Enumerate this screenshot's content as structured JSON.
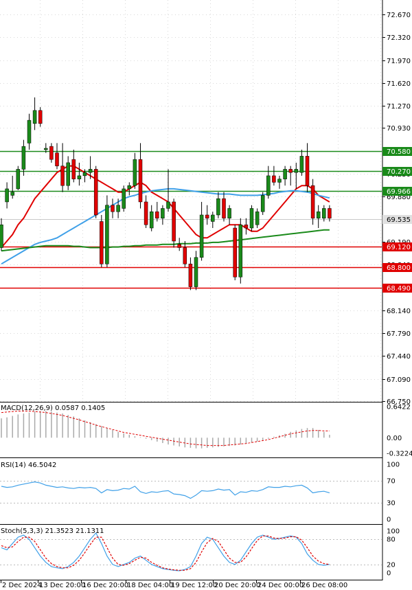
{
  "chart_data": [
    {
      "type": "candlestick",
      "panel": "price",
      "ylim": [
        66.75,
        72.87
      ],
      "y_ticks": [
        "72.670",
        "72.320",
        "71.970",
        "71.620",
        "71.270",
        "70.930",
        "70.580",
        "70.230",
        "69.880",
        "69.535",
        "69.190",
        "68.840",
        "68.490",
        "68.140",
        "67.790",
        "67.440",
        "67.090",
        "66.750"
      ],
      "current_price": {
        "value": 69.535,
        "label": "69.535",
        "color": "#e0e0e0"
      },
      "levels": [
        {
          "value": 70.58,
          "label": "70.580",
          "color": "#1a8a1a"
        },
        {
          "value": 70.27,
          "label": "70.270",
          "color": "#1a8a1a"
        },
        {
          "value": 69.966,
          "label": "69.966",
          "color": "#1a8a1a"
        },
        {
          "value": 69.12,
          "label": "69.120",
          "color": "#e00000"
        },
        {
          "value": 68.8,
          "label": "68.800",
          "color": "#e00000"
        },
        {
          "value": 68.49,
          "label": "68.490",
          "color": "#e00000"
        }
      ],
      "candles": [
        {
          "o": 69.1,
          "h": 69.55,
          "l": 69.05,
          "c": 69.45
        },
        {
          "o": 69.8,
          "h": 70.1,
          "l": 69.7,
          "c": 70.0
        },
        {
          "o": 69.9,
          "h": 70.2,
          "l": 69.85,
          "c": 69.95
        },
        {
          "o": 70.0,
          "h": 70.35,
          "l": 69.98,
          "c": 70.3
        },
        {
          "o": 70.3,
          "h": 70.75,
          "l": 70.2,
          "c": 70.65
        },
        {
          "o": 70.7,
          "h": 71.15,
          "l": 70.6,
          "c": 71.05
        },
        {
          "o": 71.0,
          "h": 71.4,
          "l": 70.9,
          "c": 71.2
        },
        {
          "o": 71.2,
          "h": 71.25,
          "l": 70.95,
          "c": 71.0
        },
        {
          "o": 70.6,
          "h": 70.7,
          "l": 70.55,
          "c": 70.62
        },
        {
          "o": 70.65,
          "h": 70.7,
          "l": 70.4,
          "c": 70.45
        },
        {
          "o": 70.55,
          "h": 70.7,
          "l": 70.3,
          "c": 70.35
        },
        {
          "o": 70.35,
          "h": 70.7,
          "l": 69.95,
          "c": 70.05
        },
        {
          "o": 70.05,
          "h": 70.5,
          "l": 69.98,
          "c": 70.4
        },
        {
          "o": 70.45,
          "h": 70.6,
          "l": 70.1,
          "c": 70.15
        },
        {
          "o": 70.15,
          "h": 70.4,
          "l": 70.05,
          "c": 70.2
        },
        {
          "o": 70.2,
          "h": 70.3,
          "l": 70.1,
          "c": 70.25
        },
        {
          "o": 70.25,
          "h": 70.5,
          "l": 70.15,
          "c": 70.3
        },
        {
          "o": 70.3,
          "h": 70.35,
          "l": 69.55,
          "c": 69.6
        },
        {
          "o": 69.5,
          "h": 69.6,
          "l": 68.8,
          "c": 68.85
        },
        {
          "o": 68.85,
          "h": 69.9,
          "l": 68.8,
          "c": 69.75
        },
        {
          "o": 69.75,
          "h": 69.85,
          "l": 69.55,
          "c": 69.65
        },
        {
          "o": 69.65,
          "h": 69.85,
          "l": 69.55,
          "c": 69.75
        },
        {
          "o": 69.7,
          "h": 70.05,
          "l": 69.65,
          "c": 70.0
        },
        {
          "o": 70.0,
          "h": 70.1,
          "l": 69.9,
          "c": 70.05
        },
        {
          "o": 70.05,
          "h": 70.55,
          "l": 70.0,
          "c": 70.45
        },
        {
          "o": 70.45,
          "h": 70.7,
          "l": 69.7,
          "c": 69.8
        },
        {
          "o": 69.8,
          "h": 69.9,
          "l": 69.4,
          "c": 69.45
        },
        {
          "o": 69.4,
          "h": 69.75,
          "l": 69.35,
          "c": 69.65
        },
        {
          "o": 69.65,
          "h": 69.8,
          "l": 69.5,
          "c": 69.55
        },
        {
          "o": 69.55,
          "h": 69.75,
          "l": 69.45,
          "c": 69.7
        },
        {
          "o": 69.7,
          "h": 70.3,
          "l": 69.65,
          "c": 69.8
        },
        {
          "o": 69.8,
          "h": 69.85,
          "l": 69.1,
          "c": 69.2
        },
        {
          "o": 69.15,
          "h": 69.25,
          "l": 69.05,
          "c": 69.1
        },
        {
          "o": 69.1,
          "h": 69.2,
          "l": 68.8,
          "c": 68.85
        },
        {
          "o": 68.85,
          "h": 68.95,
          "l": 68.45,
          "c": 68.5
        },
        {
          "o": 68.5,
          "h": 69.05,
          "l": 68.45,
          "c": 68.95
        },
        {
          "o": 68.95,
          "h": 69.8,
          "l": 68.9,
          "c": 69.6
        },
        {
          "o": 69.6,
          "h": 69.75,
          "l": 69.45,
          "c": 69.55
        },
        {
          "o": 69.5,
          "h": 69.65,
          "l": 69.4,
          "c": 69.6
        },
        {
          "o": 69.6,
          "h": 69.95,
          "l": 69.55,
          "c": 69.85
        },
        {
          "o": 69.85,
          "h": 69.95,
          "l": 69.5,
          "c": 69.55
        },
        {
          "o": 69.55,
          "h": 69.75,
          "l": 69.45,
          "c": 69.7
        },
        {
          "o": 69.4,
          "h": 69.45,
          "l": 68.6,
          "c": 68.65
        },
        {
          "o": 68.65,
          "h": 69.55,
          "l": 68.55,
          "c": 69.45
        },
        {
          "o": 69.45,
          "h": 69.55,
          "l": 69.3,
          "c": 69.4
        },
        {
          "o": 69.4,
          "h": 69.75,
          "l": 69.35,
          "c": 69.7
        },
        {
          "o": 69.45,
          "h": 69.7,
          "l": 69.4,
          "c": 69.65
        },
        {
          "o": 69.65,
          "h": 69.95,
          "l": 69.6,
          "c": 69.9
        },
        {
          "o": 69.9,
          "h": 70.35,
          "l": 69.85,
          "c": 70.2
        },
        {
          "o": 70.2,
          "h": 70.35,
          "l": 70.05,
          "c": 70.1
        },
        {
          "o": 70.1,
          "h": 70.2,
          "l": 70.0,
          "c": 70.15
        },
        {
          "o": 70.15,
          "h": 70.35,
          "l": 70.05,
          "c": 70.3
        },
        {
          "o": 70.3,
          "h": 70.35,
          "l": 70.05,
          "c": 70.25
        },
        {
          "o": 70.25,
          "h": 70.4,
          "l": 70.0,
          "c": 70.3
        },
        {
          "o": 70.25,
          "h": 70.6,
          "l": 70.2,
          "c": 70.5
        },
        {
          "o": 70.5,
          "h": 70.7,
          "l": 69.95,
          "c": 70.05
        },
        {
          "o": 70.05,
          "h": 70.15,
          "l": 69.45,
          "c": 69.55
        },
        {
          "o": 69.55,
          "h": 69.75,
          "l": 69.4,
          "c": 69.65
        },
        {
          "o": 69.55,
          "h": 69.75,
          "l": 69.5,
          "c": 69.7
        },
        {
          "o": 69.7,
          "h": 69.75,
          "l": 69.5,
          "c": 69.55
        }
      ],
      "series": [
        {
          "name": "",
          "color": "#e00000",
          "values": [
            69.1,
            69.2,
            69.3,
            69.45,
            69.55,
            69.7,
            69.85,
            69.95,
            70.05,
            70.15,
            70.25,
            70.3,
            70.35,
            70.35,
            70.3,
            70.25,
            70.2,
            70.15,
            70.1,
            70.05,
            70.0,
            69.95,
            69.95,
            70.0,
            70.05,
            70.1,
            70.05,
            69.95,
            69.9,
            69.85,
            69.8,
            69.7,
            69.6,
            69.5,
            69.4,
            69.3,
            69.25,
            69.25,
            69.3,
            69.35,
            69.4,
            69.45,
            69.45,
            69.45,
            69.4,
            69.35,
            69.35,
            69.4,
            69.5,
            69.6,
            69.7,
            69.8,
            69.9,
            70.0,
            70.05,
            70.05,
            70.0,
            69.9,
            69.85,
            69.8
          ]
        },
        {
          "name": "",
          "color": "#3fa0e8",
          "values": [
            68.85,
            68.9,
            68.95,
            69.0,
            69.05,
            69.1,
            69.15,
            69.18,
            69.2,
            69.22,
            69.25,
            69.3,
            69.35,
            69.4,
            69.45,
            69.5,
            69.55,
            69.6,
            69.65,
            69.7,
            69.75,
            69.8,
            69.85,
            69.88,
            69.9,
            69.93,
            69.95,
            69.97,
            69.98,
            69.99,
            70.0,
            70.0,
            69.99,
            69.98,
            69.97,
            69.96,
            69.95,
            69.94,
            69.93,
            69.92,
            69.92,
            69.92,
            69.91,
            69.9,
            69.9,
            69.9,
            69.9,
            69.91,
            69.92,
            69.93,
            69.95,
            69.96,
            69.97,
            69.97,
            69.96,
            69.95,
            69.93,
            69.9,
            69.88,
            69.86
          ]
        },
        {
          "name": "",
          "color": "#1a8a1a",
          "values": [
            69.05,
            69.06,
            69.07,
            69.08,
            69.09,
            69.1,
            69.11,
            69.12,
            69.13,
            69.13,
            69.13,
            69.13,
            69.13,
            69.12,
            69.12,
            69.11,
            69.1,
            69.1,
            69.1,
            69.1,
            69.11,
            69.11,
            69.12,
            69.12,
            69.13,
            69.13,
            69.14,
            69.14,
            69.14,
            69.15,
            69.15,
            69.15,
            69.16,
            69.16,
            69.16,
            69.17,
            69.17,
            69.17,
            69.18,
            69.18,
            69.19,
            69.2,
            69.21,
            69.22,
            69.23,
            69.24,
            69.25,
            69.26,
            69.27,
            69.28,
            69.29,
            69.3,
            69.31,
            69.32,
            69.33,
            69.34,
            69.35,
            69.36,
            69.37,
            69.37
          ]
        }
      ]
    },
    {
      "type": "histogram",
      "panel": "macd",
      "label": "MACD(12,26,9) 0.0587 0.1405",
      "ylim": [
        -0.3224,
        0.6422
      ],
      "y_ticks": [
        "0.6422",
        "0.00",
        "-0.3224"
      ],
      "histogram": [
        0.4,
        0.42,
        0.45,
        0.48,
        0.5,
        0.52,
        0.54,
        0.55,
        0.55,
        0.54,
        0.52,
        0.5,
        0.47,
        0.44,
        0.4,
        0.36,
        0.32,
        0.28,
        0.24,
        0.2,
        0.16,
        0.12,
        0.09,
        0.06,
        0.03,
        0.01,
        -0.02,
        -0.05,
        -0.08,
        -0.11,
        -0.14,
        -0.16,
        -0.18,
        -0.2,
        -0.21,
        -0.22,
        -0.22,
        -0.21,
        -0.2,
        -0.19,
        -0.18,
        -0.17,
        -0.16,
        -0.14,
        -0.12,
        -0.1,
        -0.08,
        -0.05,
        -0.02,
        0.02,
        0.05,
        0.08,
        0.12,
        0.15,
        0.18,
        0.2,
        0.2,
        0.16,
        0.12,
        0.06
      ],
      "signal": [
        0.52,
        0.53,
        0.54,
        0.55,
        0.55,
        0.55,
        0.54,
        0.53,
        0.52,
        0.5,
        0.48,
        0.46,
        0.43,
        0.4,
        0.37,
        0.33,
        0.3,
        0.26,
        0.23,
        0.2,
        0.17,
        0.14,
        0.11,
        0.09,
        0.07,
        0.05,
        0.03,
        0.01,
        -0.01,
        -0.03,
        -0.05,
        -0.07,
        -0.09,
        -0.11,
        -0.13,
        -0.14,
        -0.15,
        -0.16,
        -0.16,
        -0.16,
        -0.16,
        -0.15,
        -0.14,
        -0.13,
        -0.12,
        -0.1,
        -0.08,
        -0.06,
        -0.04,
        -0.01,
        0.02,
        0.05,
        0.08,
        0.1,
        0.12,
        0.14,
        0.15,
        0.15,
        0.14,
        0.14
      ],
      "hist_color": "#a9a9a9",
      "signal_color": "#e00000"
    },
    {
      "type": "line",
      "panel": "rsi",
      "label": "RSI(14) 46.5042",
      "ylim": [
        0,
        100
      ],
      "y_ticks": [
        "100",
        "70",
        "30",
        "0"
      ],
      "series": [
        {
          "name": "",
          "color": "#3fa0e8",
          "values": [
            60,
            58,
            59,
            62,
            64,
            66,
            68,
            66,
            62,
            60,
            58,
            59,
            57,
            56,
            58,
            57,
            58,
            56,
            48,
            54,
            52,
            53,
            56,
            55,
            60,
            50,
            47,
            50,
            49,
            51,
            52,
            46,
            45,
            43,
            38,
            44,
            52,
            51,
            52,
            55,
            53,
            54,
            44,
            50,
            49,
            52,
            51,
            54,
            59,
            58,
            58,
            60,
            59,
            61,
            62,
            57,
            48,
            50,
            51,
            48
          ]
        }
      ]
    },
    {
      "type": "line",
      "panel": "stochastic",
      "label": "Stoch(5,3,3) 21.3523 21.1311",
      "ylim": [
        0,
        100
      ],
      "y_ticks": [
        "100",
        "80",
        "20",
        "0"
      ],
      "series": [
        {
          "name": "",
          "color": "#3fa0e8",
          "values": [
            60,
            55,
            70,
            85,
            90,
            80,
            60,
            40,
            25,
            15,
            12,
            10,
            15,
            25,
            40,
            60,
            80,
            95,
            70,
            40,
            20,
            15,
            20,
            25,
            35,
            40,
            30,
            20,
            15,
            10,
            8,
            6,
            5,
            8,
            15,
            40,
            70,
            85,
            80,
            60,
            40,
            25,
            20,
            30,
            50,
            70,
            85,
            90,
            85,
            80,
            82,
            85,
            88,
            85,
            70,
            45,
            30,
            20,
            18,
            20
          ]
        },
        {
          "name": "",
          "color": "#e00000",
          "values": [
            65,
            60,
            62,
            75,
            85,
            85,
            75,
            55,
            35,
            22,
            15,
            12,
            12,
            18,
            30,
            48,
            68,
            85,
            85,
            60,
            35,
            20,
            18,
            22,
            30,
            37,
            35,
            25,
            18,
            12,
            9,
            7,
            6,
            6,
            10,
            25,
            50,
            72,
            82,
            75,
            55,
            35,
            25,
            25,
            38,
            58,
            77,
            88,
            88,
            83,
            82,
            83,
            86,
            86,
            78,
            60,
            40,
            28,
            22,
            20
          ]
        }
      ]
    }
  ],
  "x_axis": {
    "labels": [
      "2 Dec 2024",
      "13 Dec 20:00",
      "16 Dec 20:00",
      "18 Dec 04:00",
      "19 Dec 12:00",
      "20 Dec 20:00",
      "24 Dec 00:00",
      "26 Dec 08:00"
    ]
  }
}
